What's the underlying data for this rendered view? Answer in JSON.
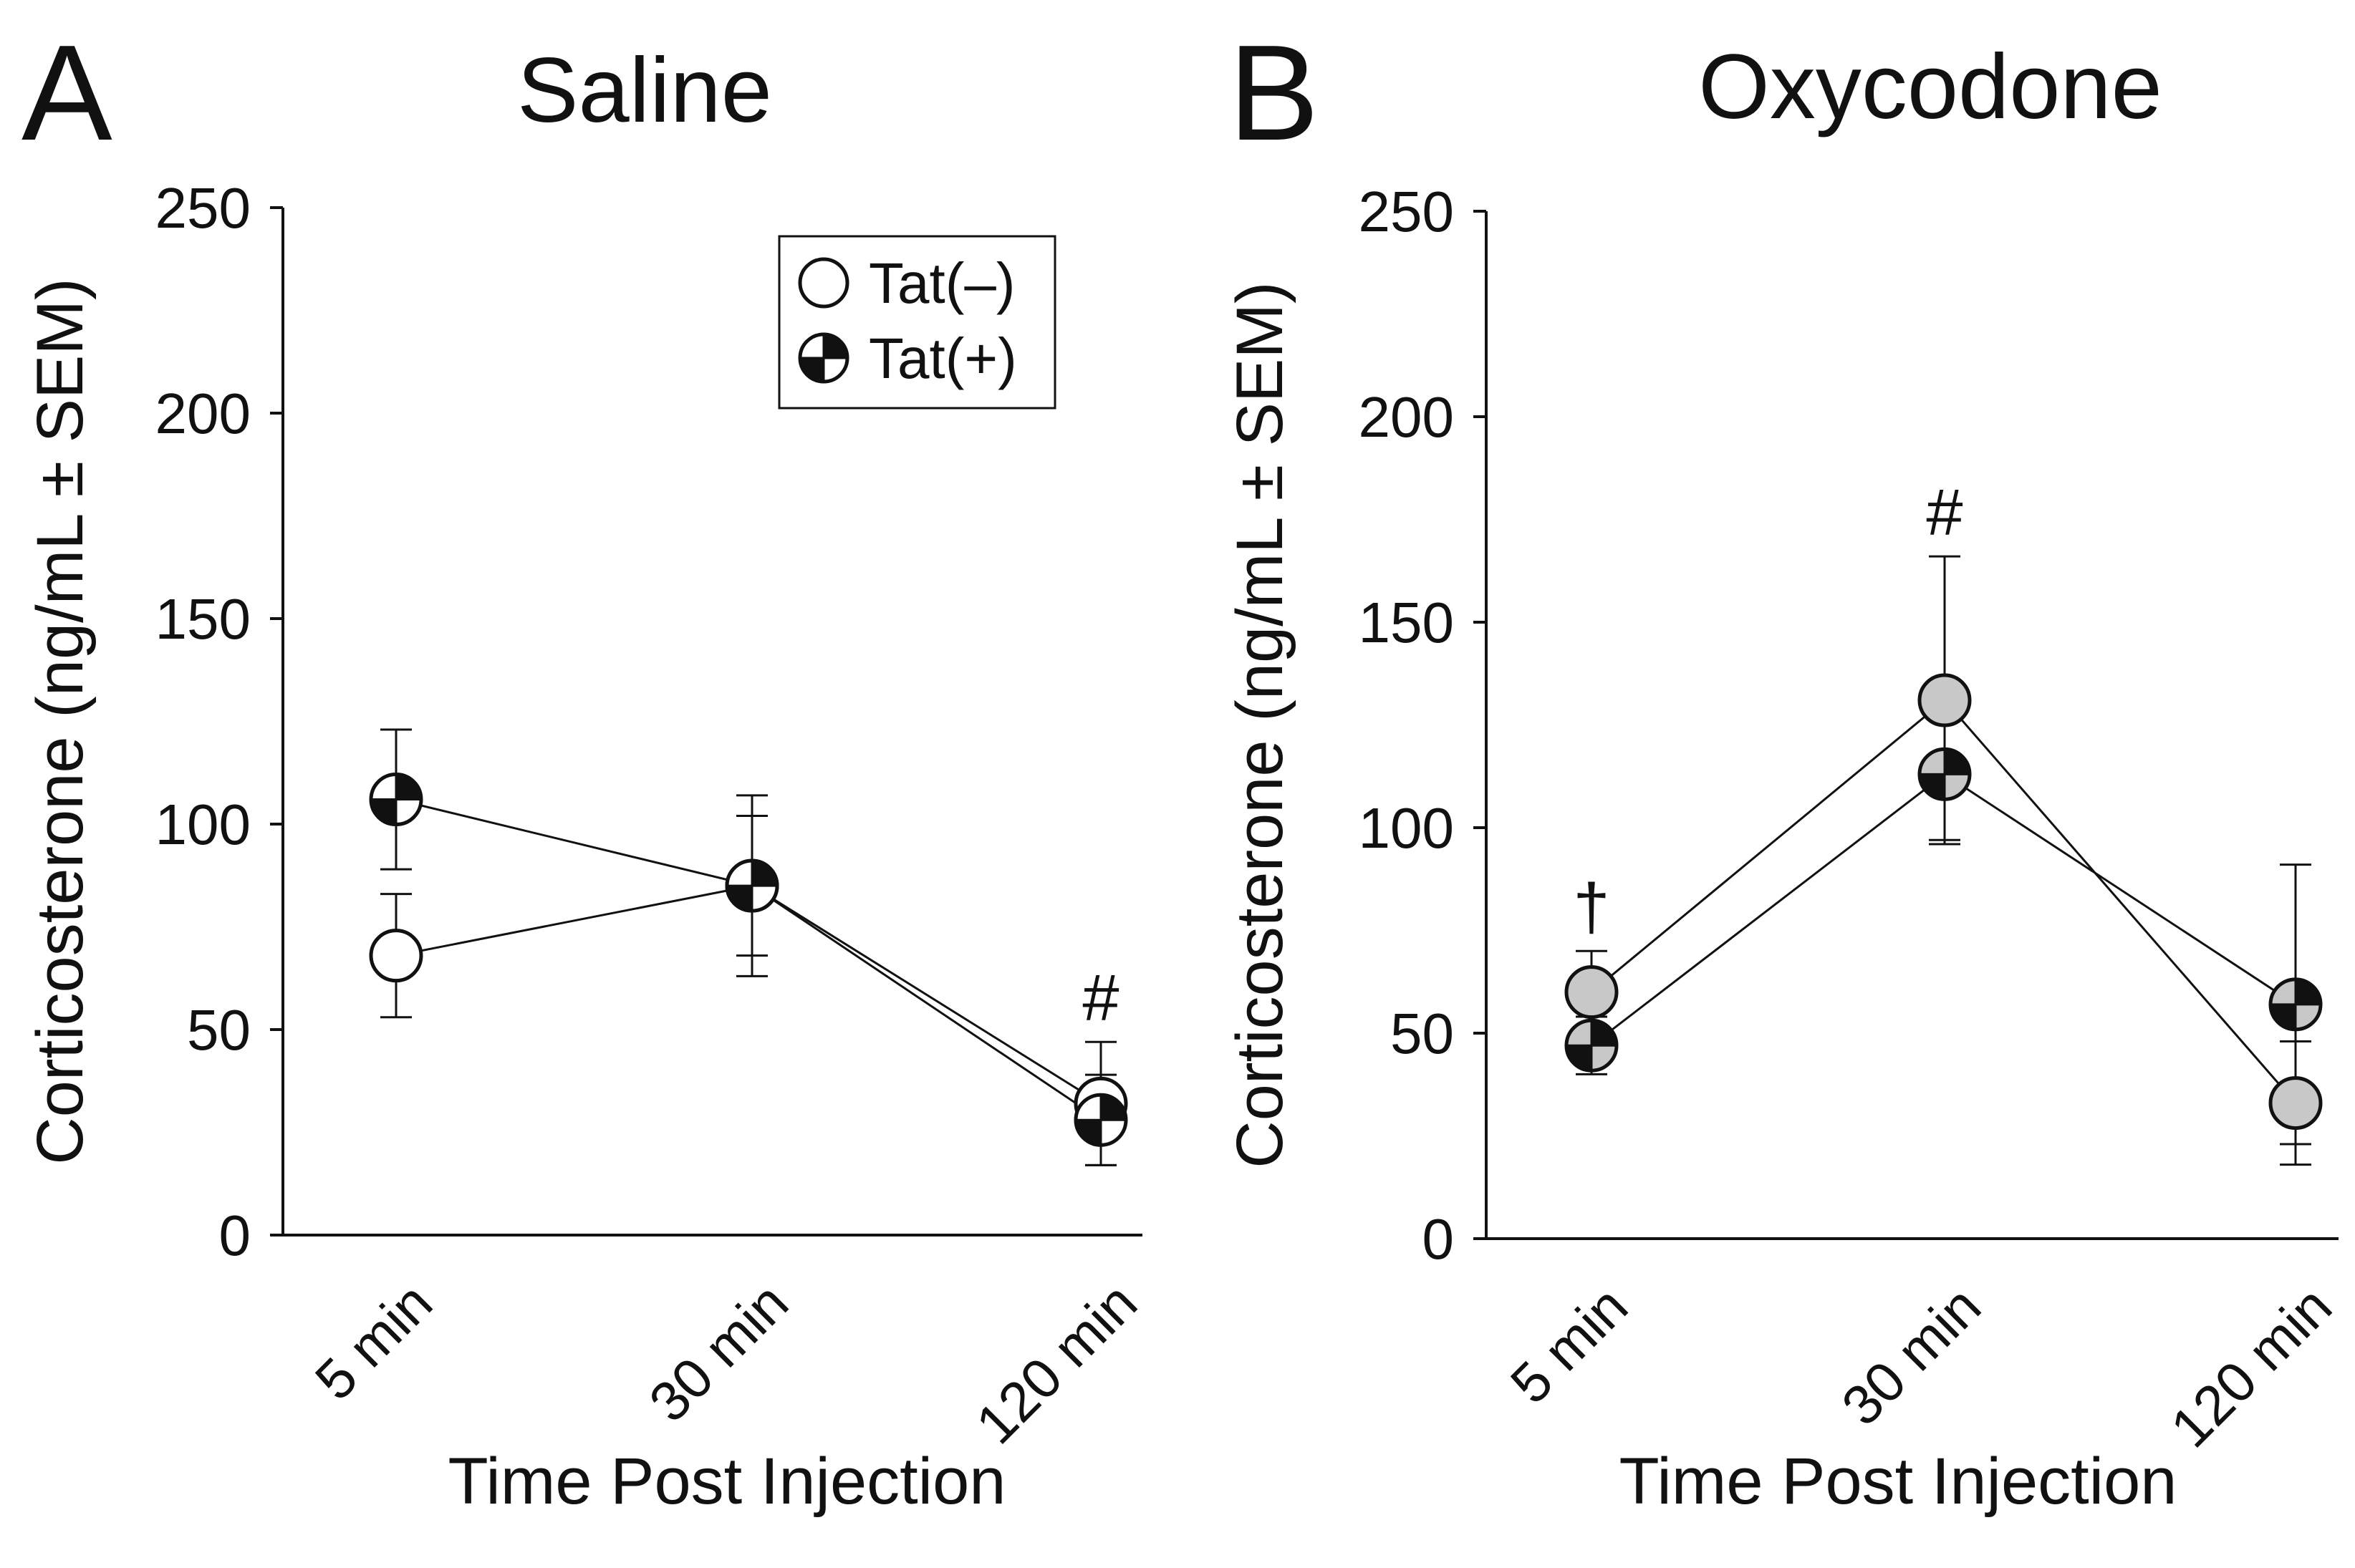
{
  "chart_data": [
    {
      "type": "line",
      "panel_letter": "A",
      "title": "Saline",
      "xlabel": "Time Post Injection",
      "ylabel": "Corticosterone (ng/mL ± SEM)",
      "ylim": [
        0,
        250
      ],
      "yticks": [
        "0",
        "50",
        "100",
        "150",
        "200",
        "250"
      ],
      "categories": [
        "5 min",
        "30 min",
        "120 min"
      ],
      "legend": {
        "position": "top-right",
        "entries": [
          "Tat(–)",
          "Tat(+)"
        ]
      },
      "series": [
        {
          "name": "Tat(–)",
          "fill": "#ffffff",
          "style": "open",
          "values": [
            68,
            85,
            32
          ],
          "sem": [
            15,
            17,
            15
          ]
        },
        {
          "name": "Tat(+)",
          "fill": "#ffffff",
          "style": "quartered",
          "values": [
            106,
            85,
            28
          ],
          "sem": [
            17,
            22,
            11
          ]
        }
      ],
      "annotations": [
        {
          "text": "#",
          "category": "120 min"
        }
      ]
    },
    {
      "type": "line",
      "panel_letter": "B",
      "title": "Oxycodone",
      "xlabel": "Time Post Injection",
      "ylabel": "Corticosterone (ng/mL ± SEM)",
      "ylim": [
        0,
        250
      ],
      "yticks": [
        "0",
        "50",
        "100",
        "150",
        "200",
        "250"
      ],
      "categories": [
        "5 min",
        "30 min",
        "120 min"
      ],
      "series": [
        {
          "name": "Tat(–)",
          "fill": "#c8c8c8",
          "style": "open",
          "values": [
            60,
            131,
            33
          ],
          "sem": [
            10,
            35,
            15
          ]
        },
        {
          "name": "Tat(+)",
          "fill": "#c8c8c8",
          "style": "quartered",
          "values": [
            47,
            113,
            57
          ],
          "sem": [
            7,
            16,
            34
          ]
        }
      ],
      "annotations": [
        {
          "text": "†",
          "category": "5 min"
        },
        {
          "text": "#",
          "category": "30 min"
        }
      ]
    }
  ]
}
